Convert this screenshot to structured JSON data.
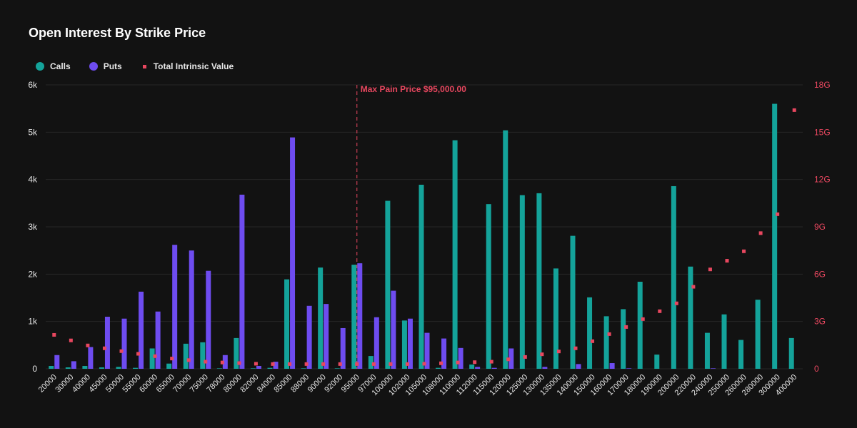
{
  "chart_data": {
    "type": "bar",
    "title": "Open Interest By Strike Price",
    "categories": [
      "20000",
      "30000",
      "40000",
      "45000",
      "50000",
      "55000",
      "60000",
      "65000",
      "70000",
      "75000",
      "78000",
      "80000",
      "82000",
      "84000",
      "85000",
      "88000",
      "90000",
      "92000",
      "95000",
      "97000",
      "100000",
      "102000",
      "105000",
      "108000",
      "110000",
      "112000",
      "115000",
      "120000",
      "125000",
      "130000",
      "135000",
      "140000",
      "150000",
      "160000",
      "170000",
      "180000",
      "190000",
      "200000",
      "220000",
      "240000",
      "250000",
      "260000",
      "280000",
      "300000",
      "400000"
    ],
    "series": [
      {
        "name": "Calls",
        "type": "bar",
        "axis": "left",
        "color": "#14a39a",
        "values": [
          60,
          30,
          60,
          30,
          40,
          20,
          430,
          110,
          530,
          560,
          10,
          650,
          10,
          20,
          1890,
          10,
          2140,
          10,
          2200,
          270,
          3550,
          1020,
          3890,
          20,
          4830,
          90,
          3480,
          5040,
          3670,
          3710,
          2120,
          2810,
          1510,
          1110,
          1260,
          1840,
          300,
          3860,
          2160,
          760,
          1150,
          610,
          1460,
          5600,
          650
        ]
      },
      {
        "name": "Puts",
        "type": "bar",
        "axis": "left",
        "color": "#6e4cf0",
        "values": [
          290,
          160,
          460,
          1100,
          1060,
          1630,
          1210,
          2620,
          2500,
          2070,
          290,
          3680,
          60,
          150,
          4890,
          1330,
          1370,
          860,
          2230,
          1090,
          1650,
          1060,
          760,
          640,
          440,
          40,
          20,
          430,
          0,
          40,
          0,
          100,
          0,
          120,
          10,
          0,
          0,
          0,
          0,
          10,
          0,
          0,
          0,
          0,
          0
        ]
      },
      {
        "name": "Total Intrinsic Value",
        "type": "scatter",
        "axis": "right",
        "color": "#e8475f",
        "values": [
          2.15,
          1.8,
          1.48,
          1.3,
          1.12,
          0.95,
          0.8,
          0.65,
          0.55,
          0.45,
          0.4,
          0.36,
          0.32,
          0.3,
          0.3,
          0.3,
          0.3,
          0.3,
          0.3,
          0.3,
          0.3,
          0.3,
          0.32,
          0.35,
          0.4,
          0.42,
          0.45,
          0.6,
          0.75,
          0.92,
          1.1,
          1.3,
          1.75,
          2.2,
          2.65,
          3.15,
          3.65,
          4.15,
          5.2,
          6.3,
          6.85,
          7.45,
          8.6,
          9.8,
          16.4
        ]
      }
    ],
    "y_left": {
      "ticks": [
        0,
        1000,
        2000,
        3000,
        4000,
        5000,
        6000
      ],
      "tick_labels": [
        "0",
        "1k",
        "2k",
        "3k",
        "4k",
        "5k",
        "6k"
      ],
      "ylim": [
        0,
        6000
      ]
    },
    "y_right": {
      "ticks": [
        0,
        3,
        6,
        9,
        12,
        15,
        18
      ],
      "tick_labels": [
        "0",
        "3G",
        "6G",
        "9G",
        "12G",
        "15G",
        "18G"
      ],
      "ylim": [
        0,
        18
      ],
      "unit": "G"
    },
    "annotation": {
      "category": "95000",
      "text": "Max Pain Price $95,000.00",
      "color": "#e8475f"
    },
    "grid": true,
    "legend_position": "top-left"
  },
  "legend": [
    {
      "label": "Calls",
      "color": "#14a39a"
    },
    {
      "label": "Puts",
      "color": "#6e4cf0"
    },
    {
      "label": "Total Intrinsic Value",
      "color": "#e8475f"
    }
  ]
}
